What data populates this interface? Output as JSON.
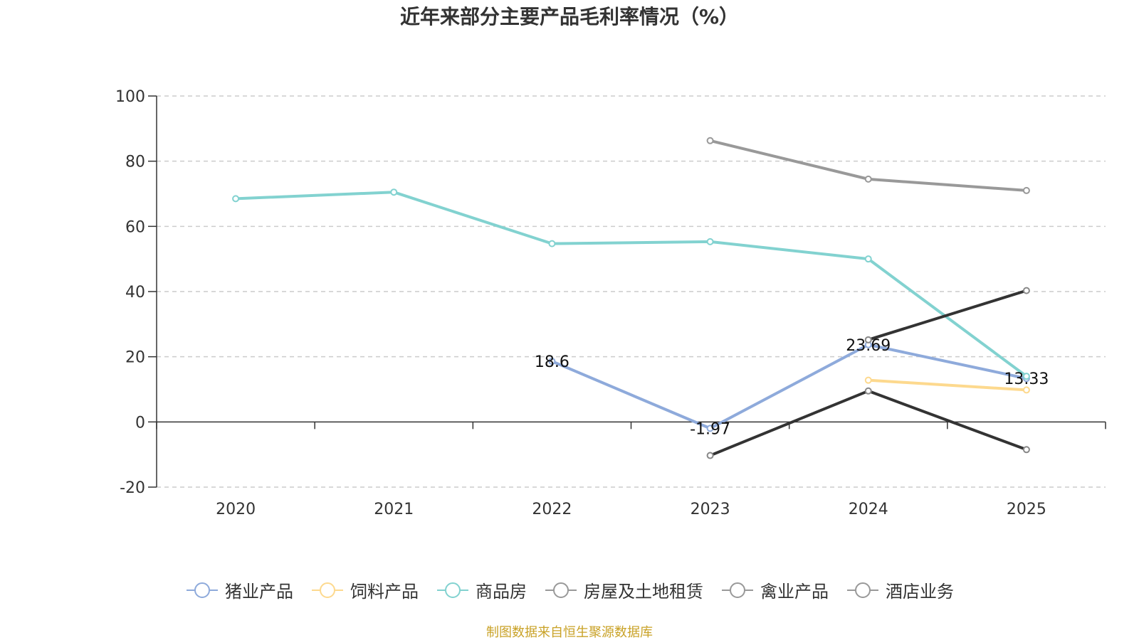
{
  "chart_data": {
    "type": "line",
    "title": "近年来部分主要产品毛利率情况（%）",
    "source_note": "制图数据来自恒生聚源数据库",
    "x": [
      "2020",
      "2021",
      "2022",
      "2023",
      "2024",
      "2025"
    ],
    "ylim": [
      -20,
      100
    ],
    "yticks": [
      -20,
      0,
      20,
      40,
      60,
      80,
      100
    ],
    "grid": true,
    "legend_position": "bottom",
    "series": [
      {
        "name": "猪业产品",
        "color": "#8eaadb",
        "values": [
          null,
          null,
          18.6,
          -1.97,
          23.69,
          13.33
        ],
        "labels": [
          null,
          null,
          "18.6",
          "-1.97",
          "23.69",
          "13.33"
        ]
      },
      {
        "name": "饲料产品",
        "color": "#fdd98e",
        "values": [
          null,
          null,
          null,
          null,
          12.8,
          9.8
        ],
        "labels": [
          null,
          null,
          null,
          null,
          null,
          null
        ]
      },
      {
        "name": "商品房",
        "color": "#82d2d0",
        "values": [
          68.5,
          70.5,
          54.7,
          55.3,
          50.0,
          14.0
        ],
        "labels": [
          null,
          null,
          null,
          null,
          null,
          null
        ]
      },
      {
        "name": "房屋及土地租赁",
        "color": "#999999",
        "values": [
          null,
          null,
          null,
          86.3,
          74.5,
          71.0
        ],
        "labels": [
          null,
          null,
          null,
          null,
          null,
          null
        ]
      },
      {
        "name": "禽业产品",
        "color": "#333333",
        "values": [
          null,
          null,
          null,
          null,
          25.2,
          40.3
        ],
        "labels": [
          null,
          null,
          null,
          null,
          null,
          null
        ]
      },
      {
        "name": "酒店业务",
        "color": "#333333",
        "values": [
          null,
          null,
          null,
          -10.3,
          9.5,
          -8.5
        ],
        "labels": [
          null,
          null,
          null,
          null,
          null,
          null
        ]
      }
    ]
  }
}
